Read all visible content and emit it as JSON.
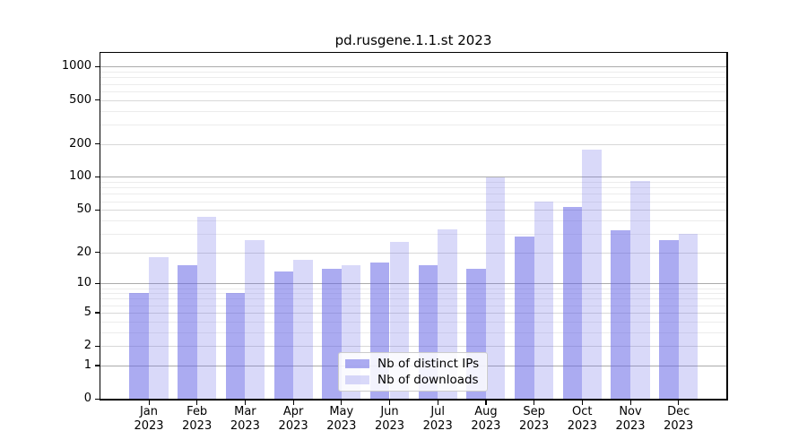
{
  "chart_data": {
    "type": "bar",
    "title": "pd.rusgene.1.1.st 2023",
    "categories": [
      "Jan",
      "Feb",
      "Mar",
      "Apr",
      "May",
      "Jun",
      "Jul",
      "Aug",
      "Sep",
      "Oct",
      "Nov",
      "Dec"
    ],
    "x_tick_year": "2023",
    "series": [
      {
        "name": "Nb of distinct IPs",
        "values": [
          8,
          15,
          8,
          13,
          14,
          16,
          15,
          14,
          28,
          53,
          32,
          26
        ],
        "fill": "rgba(102,102,230,0.55)",
        "apparent_color": "#aaaaf0"
      },
      {
        "name": "Nb of downloads",
        "values": [
          18,
          43,
          26,
          17,
          15,
          25,
          33,
          99,
          60,
          176,
          91,
          30
        ],
        "fill": "rgba(102,102,230,0.25)",
        "apparent_color": "#d9d9f8"
      }
    ],
    "yscale": "log1p",
    "ytick_labels": [
      0,
      1,
      2,
      5,
      10,
      20,
      50,
      100,
      200,
      500,
      1000
    ],
    "ylim": [
      0,
      1200
    ],
    "grid": true,
    "legend_position": "lower-center-inside",
    "colors": {
      "grid_major": "#ababab",
      "grid_mid": "#d8d8d8",
      "grid_minor": "#ececec",
      "axis": "#000000"
    }
  }
}
